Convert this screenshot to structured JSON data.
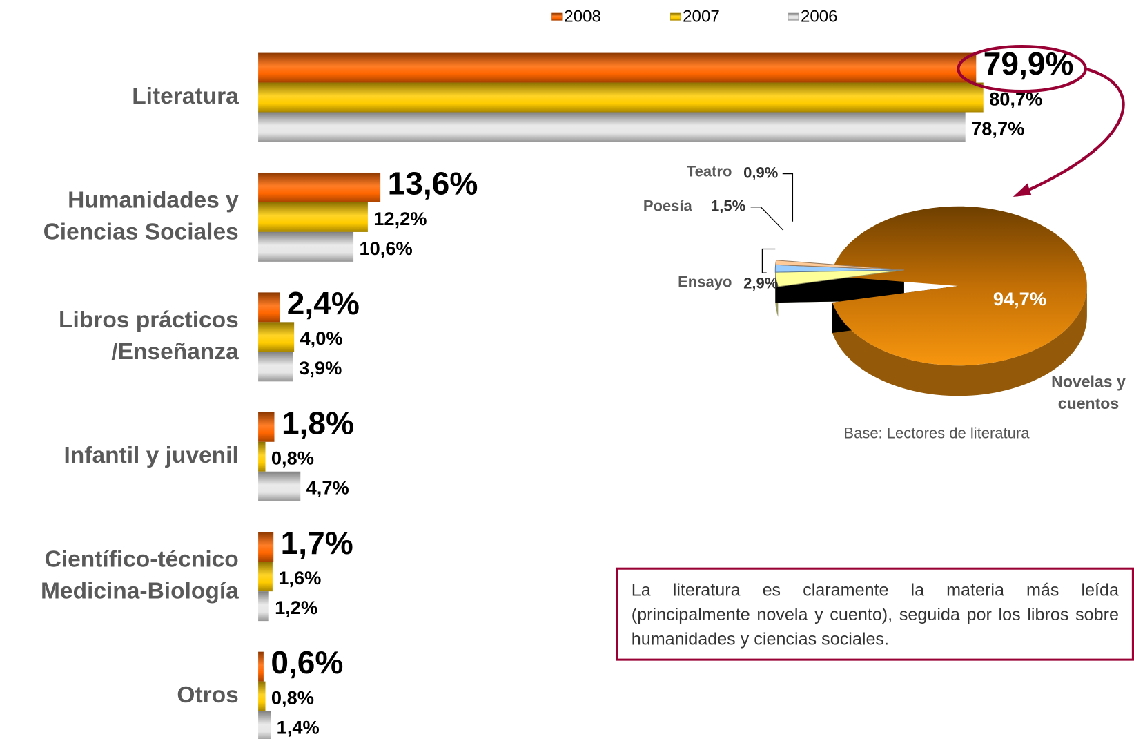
{
  "chart_data": [
    {
      "type": "bar",
      "orientation": "horizontal",
      "categories": [
        "Literatura",
        "Humanidades y\nCiencias Sociales",
        "Libros prácticos\n/Enseñanza",
        "Infantil y juvenil",
        "Científico-técnico\nMedicina-Biología",
        "Otros"
      ],
      "series": [
        {
          "name": "2008",
          "color": "#ff6600",
          "values": [
            79.9,
            13.6,
            2.4,
            1.8,
            1.7,
            0.6
          ],
          "value_labels": [
            "79,9%",
            "13,6%",
            "2,4%",
            "1,8%",
            "1,7%",
            "0,6%"
          ]
        },
        {
          "name": "2007",
          "color": "#ffcc00",
          "values": [
            80.7,
            12.2,
            4.0,
            0.8,
            1.6,
            0.8
          ],
          "value_labels": [
            "80,7%",
            "12,2%",
            "4,0%",
            "0,8%",
            "1,6%",
            "0,8%"
          ]
        },
        {
          "name": "2006",
          "color": "#e6e6e6",
          "values": [
            78.7,
            10.6,
            3.9,
            4.7,
            1.2,
            1.4
          ],
          "value_labels": [
            "78,7%",
            "10,6%",
            "3,9%",
            "4,7%",
            "1,2%",
            "1,4%"
          ]
        }
      ],
      "xlim": [
        0,
        80
      ],
      "legend": "top"
    },
    {
      "type": "pie",
      "categories": [
        "Novelas y\ncuentos",
        "Ensayo",
        "Poesía",
        "Teatro"
      ],
      "values": [
        94.7,
        2.9,
        1.5,
        0.9
      ],
      "value_labels": [
        "94,7%",
        "2,9%",
        "1,5%",
        "0,9%"
      ],
      "colors": [
        "#f7960f",
        "#ffff99",
        "#99ccff",
        "#ffcc99"
      ],
      "note": "Base: Lectores de literatura"
    }
  ],
  "note": "La literatura es claramente la materia más leída (principalmente novela y cuento), seguida por los libros sobre humanidades y ciencias sociales."
}
